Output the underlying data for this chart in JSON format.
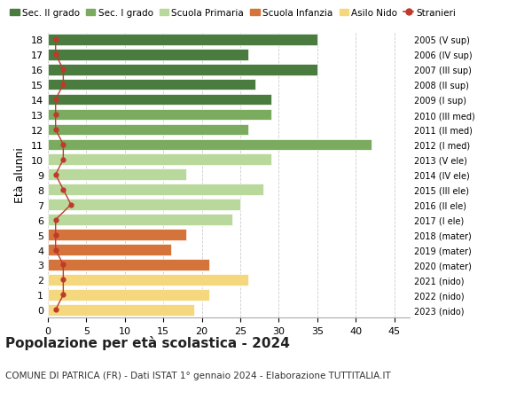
{
  "ages": [
    18,
    17,
    16,
    15,
    14,
    13,
    12,
    11,
    10,
    9,
    8,
    7,
    6,
    5,
    4,
    3,
    2,
    1,
    0
  ],
  "right_labels": [
    "2005 (V sup)",
    "2006 (IV sup)",
    "2007 (III sup)",
    "2008 (II sup)",
    "2009 (I sup)",
    "2010 (III med)",
    "2011 (II med)",
    "2012 (I med)",
    "2013 (V ele)",
    "2014 (IV ele)",
    "2015 (III ele)",
    "2016 (II ele)",
    "2017 (I ele)",
    "2018 (mater)",
    "2019 (mater)",
    "2020 (mater)",
    "2021 (nido)",
    "2022 (nido)",
    "2023 (nido)"
  ],
  "bar_values": [
    35,
    26,
    35,
    27,
    29,
    29,
    26,
    42,
    29,
    18,
    28,
    25,
    24,
    18,
    16,
    21,
    26,
    21,
    19
  ],
  "bar_colors": [
    "#4a7c3f",
    "#4a7c3f",
    "#4a7c3f",
    "#4a7c3f",
    "#4a7c3f",
    "#7aab5e",
    "#7aab5e",
    "#7aab5e",
    "#b8d89c",
    "#b8d89c",
    "#b8d89c",
    "#b8d89c",
    "#b8d89c",
    "#d4733a",
    "#d4733a",
    "#d4733a",
    "#f5d87e",
    "#f5d87e",
    "#f5d87e"
  ],
  "stranieri_values": [
    1,
    1,
    2,
    2,
    1,
    1,
    1,
    2,
    2,
    1,
    2,
    3,
    1,
    1,
    1,
    2,
    2,
    2,
    1
  ],
  "legend_labels": [
    "Sec. II grado",
    "Sec. I grado",
    "Scuola Primaria",
    "Scuola Infanzia",
    "Asilo Nido",
    "Stranieri"
  ],
  "legend_colors": [
    "#4a7c3f",
    "#7aab5e",
    "#b8d89c",
    "#d4733a",
    "#f5d87e",
    "#c0392b"
  ],
  "ylabel_left": "Età alunni",
  "title": "Popolazione per età scolastica - 2024",
  "subtitle": "COMUNE DI PATRICA (FR) - Dati ISTAT 1° gennaio 2024 - Elaborazione TUTTITALIA.IT",
  "xlim": [
    0,
    47
  ],
  "xticks": [
    0,
    5,
    10,
    15,
    20,
    25,
    30,
    35,
    40,
    45
  ],
  "bg_color": "#ffffff",
  "grid_color": "#cccccc"
}
